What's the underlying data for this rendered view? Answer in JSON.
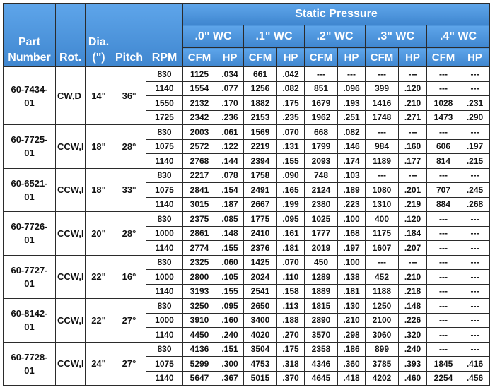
{
  "header": {
    "part_number": [
      "Part",
      "Number"
    ],
    "rot": "Rot.",
    "dia": [
      "Dia.",
      "(\")"
    ],
    "pitch": "Pitch",
    "rpm": "RPM",
    "static_pressure": "Static Pressure",
    "pressures": [
      ".0\" WC",
      ".1\" WC",
      ".2\" WC",
      ".3\" WC",
      ".4\" WC"
    ],
    "cfm": "CFM",
    "hp": "HP"
  },
  "groups": [
    {
      "part": [
        "60-7434-",
        "01"
      ],
      "rot": "CW,D",
      "dia": "14\"",
      "pitch": "36°",
      "rows": [
        [
          "830",
          "1125",
          ".034",
          "661",
          ".042",
          "---",
          "---",
          "---",
          "---",
          "---",
          "---"
        ],
        [
          "1140",
          "1554",
          ".077",
          "1256",
          ".082",
          "851",
          ".096",
          "399",
          ".120",
          "---",
          "---"
        ],
        [
          "1550",
          "2132",
          ".170",
          "1882",
          ".175",
          "1679",
          ".193",
          "1416",
          ".210",
          "1028",
          ".231"
        ],
        [
          "1725",
          "2342",
          ".236",
          "2153",
          ".235",
          "1962",
          ".251",
          "1748",
          ".271",
          "1473",
          ".290"
        ]
      ]
    },
    {
      "part": [
        "60-7725-",
        "01"
      ],
      "rot": "CCW,I",
      "dia": "18\"",
      "pitch": "28°",
      "rows": [
        [
          "830",
          "2003",
          ".061",
          "1569",
          ".070",
          "668",
          ".082",
          "---",
          "---",
          "---",
          "---"
        ],
        [
          "1075",
          "2572",
          ".122",
          "2219",
          ".131",
          "1799",
          ".146",
          "984",
          ".160",
          "606",
          ".197"
        ],
        [
          "1140",
          "2768",
          ".144",
          "2394",
          ".155",
          "2093",
          ".174",
          "1189",
          ".177",
          "814",
          ".215"
        ]
      ]
    },
    {
      "part": [
        "60-6521-",
        "01"
      ],
      "rot": "CCW,I",
      "dia": "18\"",
      "pitch": "33°",
      "rows": [
        [
          "830",
          "2217",
          ".078",
          "1758",
          ".090",
          "748",
          ".103",
          "---",
          "---",
          "---",
          "---"
        ],
        [
          "1075",
          "2841",
          ".154",
          "2491",
          ".165",
          "2124",
          ".189",
          "1080",
          ".201",
          "707",
          ".245"
        ],
        [
          "1140",
          "3015",
          ".187",
          "2667",
          ".199",
          "2380",
          ".223",
          "1310",
          ".219",
          "884",
          ".268"
        ]
      ]
    },
    {
      "part": [
        "60-7726-",
        "01"
      ],
      "rot": "CCW,I",
      "dia": "20\"",
      "pitch": "28°",
      "rows": [
        [
          "830",
          "2375",
          ".085",
          "1775",
          ".095",
          "1025",
          ".100",
          "400",
          ".120",
          "---",
          "---"
        ],
        [
          "1000",
          "2861",
          ".148",
          "2410",
          ".161",
          "1777",
          ".168",
          "1175",
          ".184",
          "---",
          "---"
        ],
        [
          "1140",
          "2774",
          ".155",
          "2376",
          ".181",
          "2019",
          ".197",
          "1607",
          ".207",
          "---",
          "---"
        ]
      ]
    },
    {
      "part": [
        "60-7727-",
        "01"
      ],
      "rot": "CCW,I",
      "dia": "22\"",
      "pitch": "16°",
      "rows": [
        [
          "830",
          "2325",
          ".060",
          "1425",
          ".070",
          "450",
          ".100",
          "---",
          "---",
          "---",
          "---"
        ],
        [
          "1000",
          "2800",
          ".105",
          "2024",
          ".110",
          "1289",
          ".138",
          "452",
          ".210",
          "---",
          "---"
        ],
        [
          "1140",
          "3193",
          ".155",
          "2541",
          ".158",
          "1889",
          ".181",
          "1188",
          ".218",
          "---",
          "---"
        ]
      ]
    },
    {
      "part": [
        "60-8142-",
        "01"
      ],
      "rot": "CCW,I",
      "dia": "22\"",
      "pitch": "27°",
      "rows": [
        [
          "830",
          "3250",
          ".095",
          "2650",
          ".113",
          "1815",
          ".130",
          "1250",
          ".148",
          "---",
          "---"
        ],
        [
          "1000",
          "3910",
          ".160",
          "3400",
          ".188",
          "2890",
          ".210",
          "2100",
          ".226",
          "---",
          "---"
        ],
        [
          "1140",
          "4450",
          ".240",
          "4020",
          ".270",
          "3570",
          ".298",
          "3060",
          ".320",
          "---",
          "---"
        ]
      ]
    },
    {
      "part": [
        "60-7728-",
        "01"
      ],
      "rot": "CCW,I",
      "dia": "24\"",
      "pitch": "27°",
      "rows": [
        [
          "830",
          "4136",
          ".151",
          "3504",
          ".175",
          "2358",
          ".186",
          "899",
          ".240",
          "---",
          "---"
        ],
        [
          "1075",
          "5299",
          ".300",
          "4753",
          ".318",
          "4346",
          ".360",
          "3785",
          ".393",
          "1845",
          ".416"
        ],
        [
          "1140",
          "5647",
          ".367",
          "5015",
          ".370",
          "4645",
          ".418",
          "4202",
          ".460",
          "2254",
          ".456"
        ]
      ]
    }
  ]
}
